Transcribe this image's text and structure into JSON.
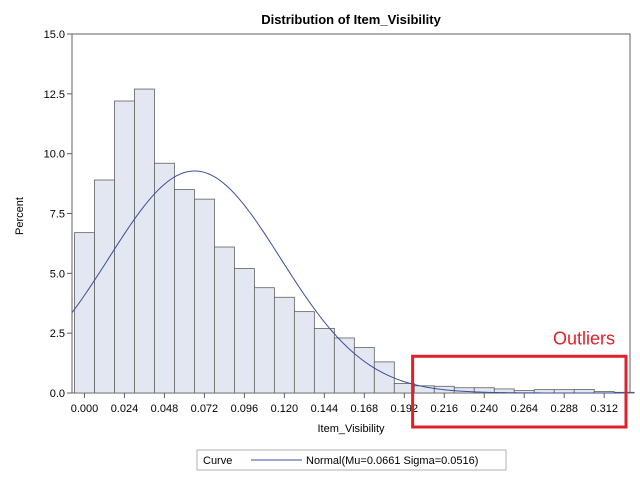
{
  "chart_data": {
    "type": "bar",
    "title": "Distribution of Item_Visibility",
    "xlabel": "Item_Visibility",
    "ylabel": "Percent",
    "bin_width": 0.012,
    "bin_start": -0.006,
    "values": [
      6.7,
      8.9,
      12.2,
      12.7,
      9.6,
      8.5,
      8.1,
      6.1,
      5.2,
      4.4,
      4.0,
      3.4,
      2.7,
      2.3,
      1.9,
      1.3,
      0.4,
      0.3,
      0.28,
      0.22,
      0.22,
      0.17,
      0.1,
      0.14,
      0.14,
      0.15,
      0.06,
      0.03
    ],
    "xticks": [
      "0.000",
      "0.024",
      "0.048",
      "0.072",
      "0.096",
      "0.120",
      "0.144",
      "0.168",
      "0.192",
      "0.216",
      "0.240",
      "0.264",
      "0.288",
      "0.312"
    ],
    "xtick_values": [
      0,
      0.024,
      0.048,
      0.072,
      0.096,
      0.12,
      0.144,
      0.168,
      0.192,
      0.216,
      0.24,
      0.264,
      0.288,
      0.312
    ],
    "xlim": [
      -0.0075,
      0.3275
    ],
    "yticks": [
      "0.0",
      "2.5",
      "5.0",
      "7.5",
      "10.0",
      "12.5",
      "15.0"
    ],
    "ytick_values": [
      0,
      2.5,
      5,
      7.5,
      10,
      12.5,
      15
    ],
    "ylim": [
      0,
      15
    ],
    "curve": {
      "mu": 0.0661,
      "sigma": 0.0516
    },
    "legend": {
      "title": "Curve",
      "entry": "Normal(Mu=0.0661 Sigma=0.0516)"
    },
    "annotation": {
      "text": "Outliers",
      "x_range": [
        0.2,
        0.3275
      ],
      "y_range": [
        0,
        1.2
      ]
    },
    "colors": {
      "bar_fill": "#e3e7f1",
      "bar_stroke": "#606060",
      "curve": "#3b4e9c",
      "annotation": "#e0202a"
    }
  }
}
